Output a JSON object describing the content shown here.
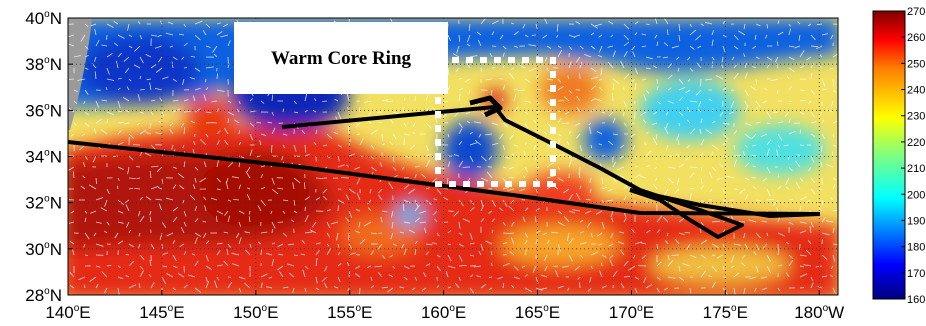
{
  "map": {
    "annotation_label": "Warm Core Ring",
    "lat_ticks": [
      {
        "deg": "40",
        "hemi": "N"
      },
      {
        "deg": "38",
        "hemi": "N"
      },
      {
        "deg": "36",
        "hemi": "N"
      },
      {
        "deg": "34",
        "hemi": "N"
      },
      {
        "deg": "32",
        "hemi": "N"
      },
      {
        "deg": "30",
        "hemi": "N"
      },
      {
        "deg": "28",
        "hemi": "N"
      }
    ],
    "lon_ticks": [
      {
        "deg": "140",
        "hemi": "E"
      },
      {
        "deg": "145",
        "hemi": "E"
      },
      {
        "deg": "150",
        "hemi": "E"
      },
      {
        "deg": "155",
        "hemi": "E"
      },
      {
        "deg": "160",
        "hemi": "E"
      },
      {
        "deg": "165",
        "hemi": "E"
      },
      {
        "deg": "170",
        "hemi": "E"
      },
      {
        "deg": "175",
        "hemi": "E"
      },
      {
        "deg": "180",
        "hemi": "W"
      }
    ],
    "lat_range": [
      28,
      40
    ],
    "lon_range": [
      140,
      181
    ],
    "ship_track_color": "#000000",
    "ring_box_color": "#ffffff",
    "land_color": "#9a9a9a"
  },
  "colorbar": {
    "ticks": [
      "270",
      "260",
      "250",
      "240",
      "230",
      "220",
      "210",
      "200",
      "190",
      "180",
      "170",
      "160"
    ],
    "min": 160,
    "max": 270,
    "colors": [
      "#00007f",
      "#0000ff",
      "#007fff",
      "#00ffff",
      "#7fff7f",
      "#ffff00",
      "#ff7f00",
      "#ff0000",
      "#7f0000"
    ]
  }
}
